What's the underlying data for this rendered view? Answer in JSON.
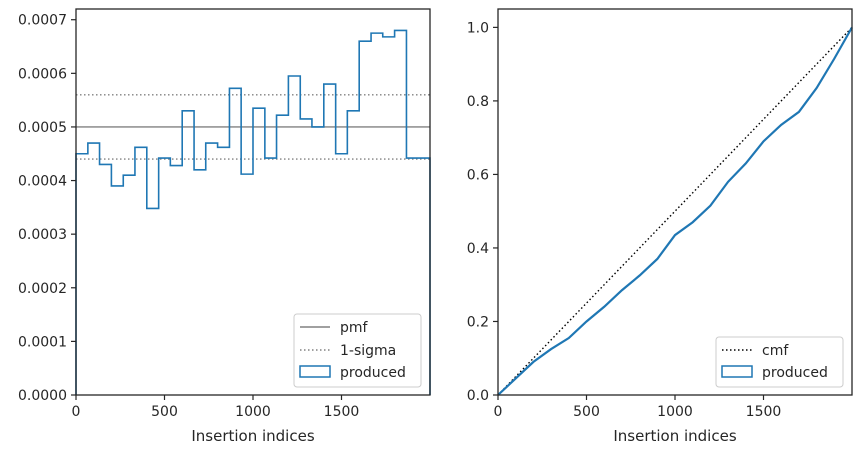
{
  "chart_data": [
    {
      "type": "histogram-step",
      "xlabel": "Insertion indices",
      "ylabel": "",
      "xlim": [
        0,
        2000
      ],
      "ylim": [
        0,
        0.00072
      ],
      "xticks": [
        0,
        500,
        1000,
        1500
      ],
      "xtick_labels": [
        "0",
        "500",
        "1000",
        "1500"
      ],
      "yticks": [
        0,
        0.0001,
        0.0002,
        0.0003,
        0.0004,
        0.0005,
        0.0006,
        0.0007
      ],
      "ytick_labels": [
        "0.0000",
        "0.0001",
        "0.0002",
        "0.0003",
        "0.0004",
        "0.0005",
        "0.0006",
        "0.0007"
      ],
      "reference_lines": [
        {
          "name": "pmf",
          "y": 0.0005,
          "style": "solid",
          "color": "#808080"
        },
        {
          "name": "1-sigma",
          "y": 0.00056,
          "style": "dotted",
          "color": "#808080"
        },
        {
          "name": "1-sigma",
          "y": 0.00044,
          "style": "dotted",
          "color": "#808080"
        }
      ],
      "series": [
        {
          "name": "produced",
          "color": "#1f77b4",
          "bin_edges": [
            0,
            67,
            133,
            200,
            267,
            333,
            400,
            467,
            533,
            600,
            667,
            733,
            800,
            867,
            933,
            1000,
            1067,
            1133,
            1200,
            1267,
            1333,
            1400,
            1467,
            1533,
            1600,
            1667,
            1733,
            1800,
            1867,
            1933,
            2000
          ],
          "values": [
            0.00045,
            0.00047,
            0.00043,
            0.00039,
            0.00041,
            0.000462,
            0.000348,
            0.000442,
            0.000428,
            0.00053,
            0.00042,
            0.00047,
            0.000462,
            0.000572,
            0.000412,
            0.000535,
            0.000442,
            0.000522,
            0.000595,
            0.000515,
            0.0005,
            0.00058,
            0.00045,
            0.00053,
            0.00066,
            0.000675,
            0.000668,
            0.00068,
            0.000442,
            0.000442
          ]
        }
      ],
      "legend": {
        "placement": "lower-right",
        "entries": [
          "pmf",
          "1-sigma",
          "produced"
        ]
      }
    },
    {
      "type": "line",
      "xlabel": "Insertion indices",
      "ylabel": "",
      "xlim": [
        0,
        2000
      ],
      "ylim": [
        0,
        1.05
      ],
      "xticks": [
        0,
        500,
        1000,
        1500
      ],
      "xtick_labels": [
        "0",
        "500",
        "1000",
        "1500"
      ],
      "yticks": [
        0,
        0.2,
        0.4,
        0.6,
        0.8,
        1.0
      ],
      "ytick_labels": [
        "0.0",
        "0.2",
        "0.4",
        "0.6",
        "0.8",
        "1.0"
      ],
      "series": [
        {
          "name": "cmf",
          "style": "dotted",
          "color": "#000000",
          "x": [
            0,
            2000
          ],
          "y": [
            0,
            1.0
          ]
        },
        {
          "name": "produced",
          "style": "solid",
          "color": "#1f77b4",
          "x": [
            0,
            100,
            200,
            300,
            400,
            500,
            600,
            700,
            800,
            900,
            1000,
            1100,
            1200,
            1300,
            1400,
            1500,
            1600,
            1700,
            1800,
            1900,
            2000
          ],
          "y": [
            0,
            0.045,
            0.09,
            0.125,
            0.155,
            0.2,
            0.24,
            0.285,
            0.325,
            0.37,
            0.435,
            0.47,
            0.515,
            0.58,
            0.63,
            0.69,
            0.735,
            0.77,
            0.835,
            0.915,
            1.0
          ]
        }
      ],
      "legend": {
        "placement": "lower-right",
        "entries": [
          "cmf",
          "produced"
        ]
      }
    }
  ]
}
